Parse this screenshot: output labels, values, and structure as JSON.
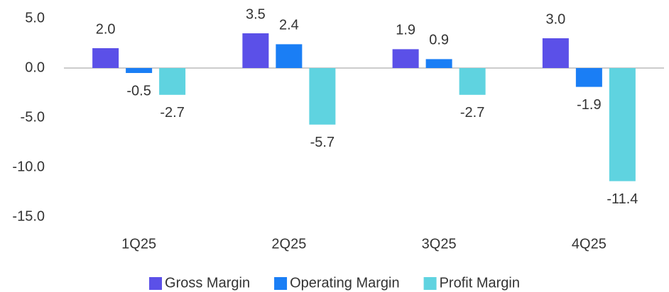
{
  "chart_data": {
    "type": "bar",
    "categories": [
      "1Q25",
      "2Q25",
      "3Q25",
      "4Q25"
    ],
    "series": [
      {
        "name": "Gross Margin",
        "color": "#5b50e8",
        "values": [
          2.0,
          3.5,
          1.9,
          3.0
        ],
        "value_labels": [
          "2.0",
          "3.5",
          "1.9",
          "3.0"
        ]
      },
      {
        "name": "Operating Margin",
        "color": "#1a7ef5",
        "values": [
          -0.5,
          2.4,
          0.9,
          -1.9
        ],
        "value_labels": [
          "-0.5",
          "2.4",
          "0.9",
          "-1.9"
        ]
      },
      {
        "name": "Profit Margin",
        "color": "#5fd3e0",
        "values": [
          -2.7,
          -5.7,
          -2.7,
          -11.4
        ],
        "value_labels": [
          "-2.7",
          "-5.7",
          "-2.7",
          "-11.4"
        ]
      }
    ],
    "ylim": [
      -15,
      5
    ],
    "yticks": [
      {
        "value": 5,
        "label": "5.0"
      },
      {
        "value": 0,
        "label": "0.0"
      },
      {
        "value": -5,
        "label": "-5.0"
      },
      {
        "value": -10,
        "label": "-10.0"
      },
      {
        "value": -15,
        "label": "-15.0"
      }
    ],
    "grid": false,
    "legend": "bottom"
  }
}
